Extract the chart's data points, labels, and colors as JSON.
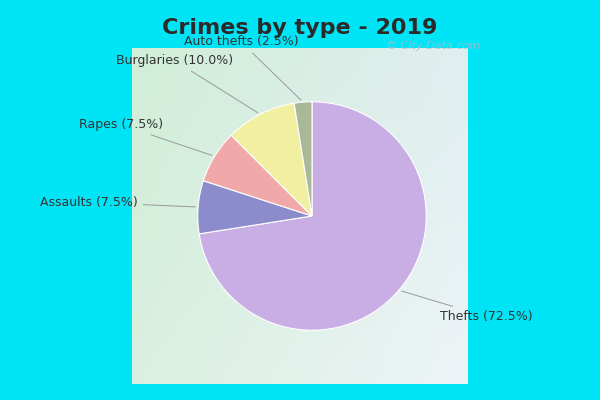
{
  "title": "Crimes by type - 2019",
  "title_fontsize": 16,
  "title_fontweight": "bold",
  "title_color": "#2a2a2a",
  "slices": [
    {
      "label": "Thefts (72.5%)",
      "value": 72.5,
      "color": "#c9aee5"
    },
    {
      "label": "Assaults (7.5%)",
      "value": 7.5,
      "color": "#8c8ccc"
    },
    {
      "label": "Rapes (7.5%)",
      "value": 7.5,
      "color": "#f0a8a8"
    },
    {
      "label": "Burglaries (10.0%)",
      "value": 10.0,
      "color": "#f0f0a0"
    },
    {
      "label": "Auto thefts (2.5%)",
      "value": 2.5,
      "color": "#a8b898"
    }
  ],
  "start_angle": 90,
  "counterclock": false,
  "bg_outer_color": "#00e5f5",
  "bg_inner_color_tl": "#d0eed8",
  "bg_inner_color_br": "#e8f0f8",
  "watermark": "© City-Data.com",
  "label_fontsize": 9,
  "label_color": "#333333",
  "line_color": "#999999"
}
